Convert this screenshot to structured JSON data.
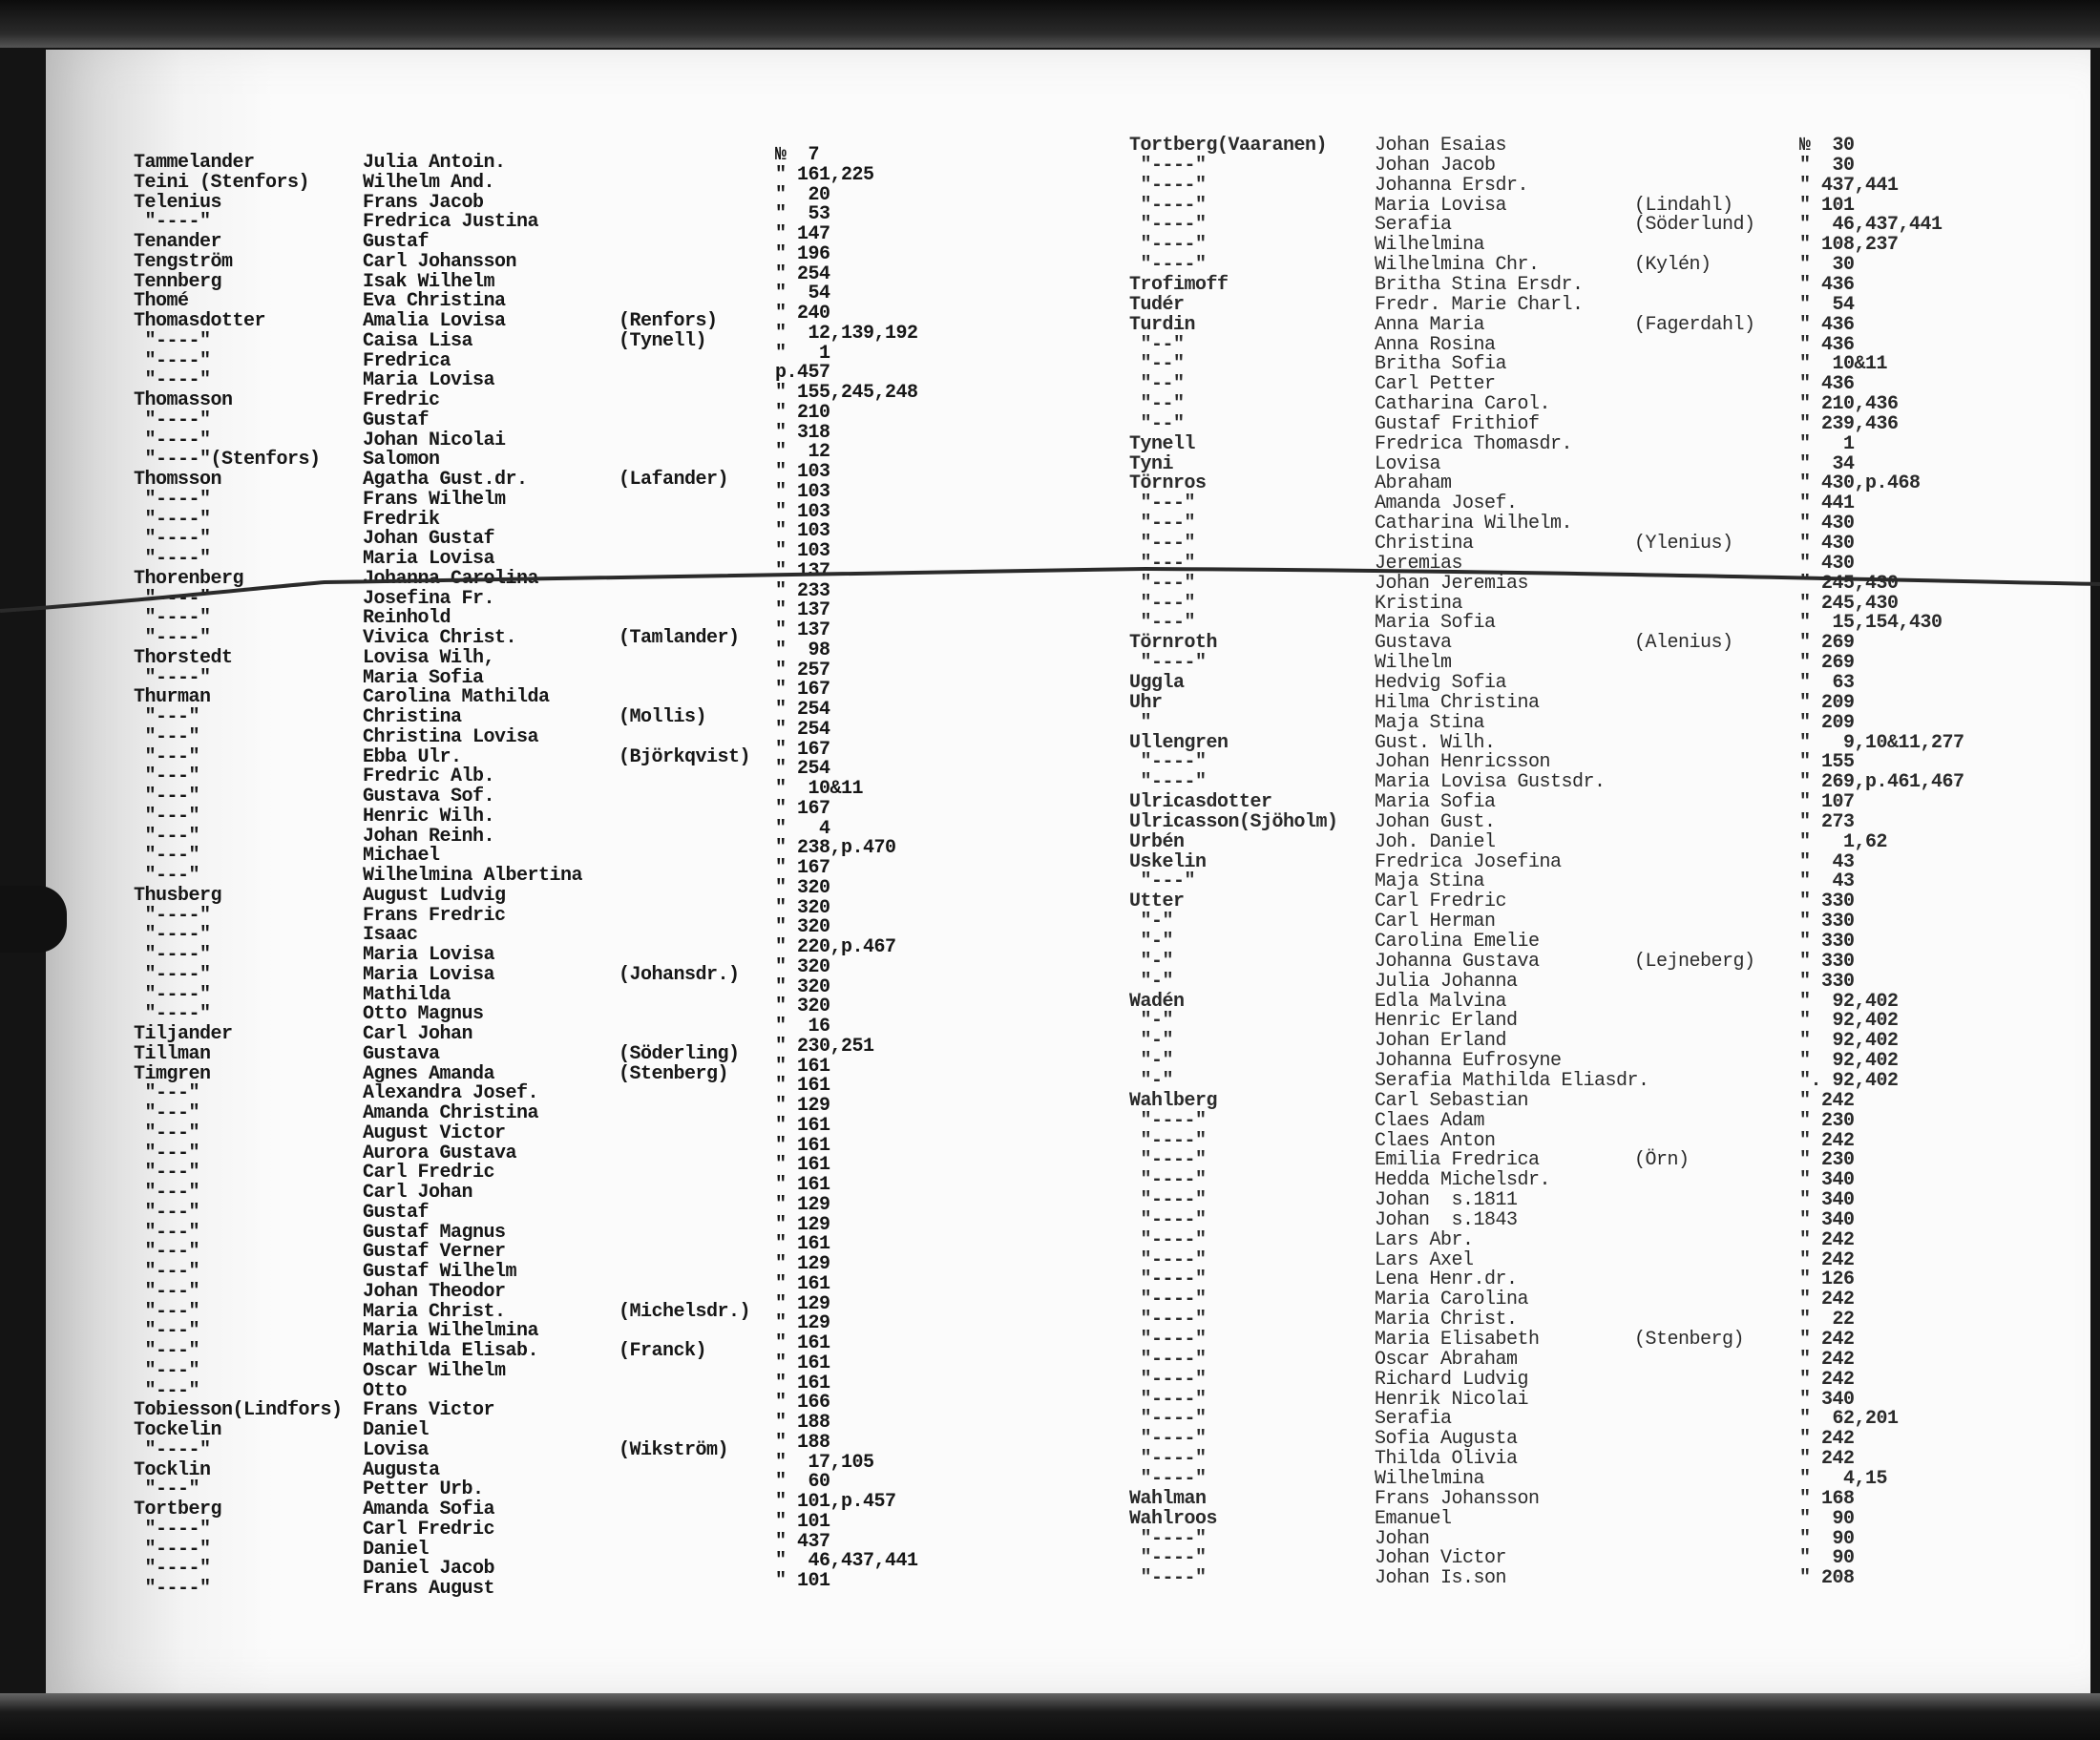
{
  "document": {
    "left_column": [
      {
        "surname": "Tammelander",
        "given": "Julia Antoin.",
        "note": "",
        "ref": "№  7"
      },
      {
        "surname": "Teini (Stenfors)",
        "given": "Wilhelm And.",
        "note": "",
        "ref": "\" 161,225"
      },
      {
        "surname": "Telenius",
        "given": "Frans Jacob",
        "note": "",
        "ref": "\"  20"
      },
      {
        "surname": " \"----\"",
        "given": "Fredrica Justina",
        "note": "",
        "ref": "\"  53"
      },
      {
        "surname": "Tenander",
        "given": "Gustaf",
        "note": "",
        "ref": "\" 147"
      },
      {
        "surname": "Tengström",
        "given": "Carl Johansson",
        "note": "",
        "ref": "\" 196"
      },
      {
        "surname": "Tennberg",
        "given": "Isak Wilhelm",
        "note": "",
        "ref": "\" 254"
      },
      {
        "surname": "Thomé",
        "given": "Eva Christina",
        "note": "",
        "ref": "\"  54"
      },
      {
        "surname": "Thomasdotter",
        "given": "Amalia Lovisa",
        "note": "(Renfors)",
        "ref": "\" 240"
      },
      {
        "surname": " \"----\"",
        "given": "Caisa Lisa",
        "note": "(Tynell)",
        "ref": "\"  12,139,192"
      },
      {
        "surname": " \"----\"",
        "given": "Fredrica",
        "note": "",
        "ref": "\"   1"
      },
      {
        "surname": " \"----\"",
        "given": "Maria Lovisa",
        "note": "",
        "ref": "p.457"
      },
      {
        "surname": "Thomasson",
        "given": "Fredric",
        "note": "",
        "ref": "\" 155,245,248"
      },
      {
        "surname": " \"----\"",
        "given": "Gustaf",
        "note": "",
        "ref": "\" 210"
      },
      {
        "surname": " \"----\"",
        "given": "Johan Nicolai",
        "note": "",
        "ref": "\" 318"
      },
      {
        "surname": " \"----\"(Stenfors)",
        "given": "Salomon",
        "note": "",
        "ref": "\"  12"
      },
      {
        "surname": "Thomsson",
        "given": "Agatha Gust.dr.",
        "note": "(Lafander)",
        "ref": "\" 103"
      },
      {
        "surname": " \"----\"",
        "given": "Frans Wilhelm",
        "note": "",
        "ref": "\" 103"
      },
      {
        "surname": " \"----\"",
        "given": "Fredrik",
        "note": "",
        "ref": "\" 103"
      },
      {
        "surname": " \"----\"",
        "given": "Johan Gustaf",
        "note": "",
        "ref": "\" 103"
      },
      {
        "surname": " \"----\"",
        "given": "Maria Lovisa",
        "note": "",
        "ref": "\" 103"
      },
      {
        "surname": "Thorenberg",
        "given": "Johanna Carolina",
        "note": "",
        "ref": "\" 137"
      },
      {
        "surname": " \"----\"",
        "given": "Josefina Fr.",
        "note": "",
        "ref": "\" 233"
      },
      {
        "surname": " \"----\"",
        "given": "Reinhold",
        "note": "",
        "ref": "\" 137"
      },
      {
        "surname": " \"----\"",
        "given": "Vivica Christ.",
        "note": "(Tamlander)",
        "ref": "\" 137"
      },
      {
        "surname": "Thorstedt",
        "given": "Lovisa Wilh,",
        "note": "",
        "ref": "\"  98"
      },
      {
        "surname": " \"----\"",
        "given": "Maria Sofia",
        "note": "",
        "ref": "\" 257"
      },
      {
        "surname": "Thurman",
        "given": "Carolina Mathilda",
        "note": "",
        "ref": "\" 167"
      },
      {
        "surname": " \"---\"",
        "given": "Christina",
        "note": "(Mollis)",
        "ref": "\" 254"
      },
      {
        "surname": " \"---\"",
        "given": "Christina Lovisa",
        "note": "",
        "ref": "\" 254"
      },
      {
        "surname": " \"---\"",
        "given": "Ebba Ulr.",
        "note": "(Björkqvist)",
        "ref": "\" 167"
      },
      {
        "surname": " \"---\"",
        "given": "Fredric Alb.",
        "note": "",
        "ref": "\" 254"
      },
      {
        "surname": " \"---\"",
        "given": "Gustava Sof.",
        "note": "",
        "ref": "\"  10&11"
      },
      {
        "surname": " \"---\"",
        "given": "Henric Wilh.",
        "note": "",
        "ref": "\" 167"
      },
      {
        "surname": " \"---\"",
        "given": "Johan Reinh.",
        "note": "",
        "ref": "\"   4"
      },
      {
        "surname": " \"---\"",
        "given": "Michael",
        "note": "",
        "ref": "\" 238,p.470"
      },
      {
        "surname": " \"---\"",
        "given": "Wilhelmina Albertina",
        "note": "",
        "ref": "\" 167"
      },
      {
        "surname": "Thusberg",
        "given": "August Ludvig",
        "note": "",
        "ref": "\" 320"
      },
      {
        "surname": " \"----\"",
        "given": "Frans Fredric",
        "note": "",
        "ref": "\" 320"
      },
      {
        "surname": " \"----\"",
        "given": "Isaac",
        "note": "",
        "ref": "\" 320"
      },
      {
        "surname": " \"----\"",
        "given": "Maria Lovisa",
        "note": "",
        "ref": "\" 220,p.467"
      },
      {
        "surname": " \"----\"",
        "given": "Maria Lovisa",
        "note": "(Johansdr.)",
        "ref": "\" 320"
      },
      {
        "surname": " \"----\"",
        "given": "Mathilda",
        "note": "",
        "ref": "\" 320"
      },
      {
        "surname": " \"----\"",
        "given": "Otto Magnus",
        "note": "",
        "ref": "\" 320"
      },
      {
        "surname": "Tiljander",
        "given": "Carl Johan",
        "note": "",
        "ref": "\"  16"
      },
      {
        "surname": "Tillman",
        "given": "Gustava",
        "note": "(Söderling)",
        "ref": "\" 230,251"
      },
      {
        "surname": "Timgren",
        "given": "Agnes Amanda",
        "note": "(Stenberg)",
        "ref": "\" 161"
      },
      {
        "surname": " \"---\"",
        "given": "Alexandra Josef.",
        "note": "",
        "ref": "\" 161"
      },
      {
        "surname": " \"---\"",
        "given": "Amanda Christina",
        "note": "",
        "ref": "\" 129"
      },
      {
        "surname": " \"---\"",
        "given": "August Victor",
        "note": "",
        "ref": "\" 161"
      },
      {
        "surname": " \"---\"",
        "given": "Aurora Gustava",
        "note": "",
        "ref": "\" 161"
      },
      {
        "surname": " \"---\"",
        "given": "Carl Fredric",
        "note": "",
        "ref": "\" 161"
      },
      {
        "surname": " \"---\"",
        "given": "Carl Johan",
        "note": "",
        "ref": "\" 161"
      },
      {
        "surname": " \"---\"",
        "given": "Gustaf",
        "note": "",
        "ref": "\" 129"
      },
      {
        "surname": " \"---\"",
        "given": "Gustaf Magnus",
        "note": "",
        "ref": "\" 129"
      },
      {
        "surname": " \"---\"",
        "given": "Gustaf Verner",
        "note": "",
        "ref": "\" 161"
      },
      {
        "surname": " \"---\"",
        "given": "Gustaf Wilhelm",
        "note": "",
        "ref": "\" 129"
      },
      {
        "surname": " \"---\"",
        "given": "Johan Theodor",
        "note": "",
        "ref": "\" 161"
      },
      {
        "surname": " \"---\"",
        "given": "Maria Christ.",
        "note": "(Michelsdr.)",
        "ref": "\" 129"
      },
      {
        "surname": " \"---\"",
        "given": "Maria Wilhelmina",
        "note": "",
        "ref": "\" 129"
      },
      {
        "surname": " \"---\"",
        "given": "Mathilda Elisab.",
        "note": "(Franck)",
        "ref": "\" 161"
      },
      {
        "surname": " \"---\"",
        "given": "Oscar Wilhelm",
        "note": "",
        "ref": "\" 161"
      },
      {
        "surname": " \"---\"",
        "given": "Otto",
        "note": "",
        "ref": "\" 161"
      },
      {
        "surname": "Tobiesson(Lindfors)",
        "given": "Frans Victor",
        "note": "",
        "ref": "\" 166"
      },
      {
        "surname": "Tockelin",
        "given": "Daniel",
        "note": "",
        "ref": "\" 188"
      },
      {
        "surname": " \"----\"",
        "given": "Lovisa",
        "note": "(Wikström)",
        "ref": "\" 188"
      },
      {
        "surname": "Tocklin",
        "given": "Augusta",
        "note": "",
        "ref": "\"  17,105"
      },
      {
        "surname": " \"---\"",
        "given": "Petter Urb.",
        "note": "",
        "ref": "\"  60"
      },
      {
        "surname": "Tortberg",
        "given": "Amanda Sofia",
        "note": "",
        "ref": "\" 101,p.457"
      },
      {
        "surname": " \"----\"",
        "given": "Carl Fredric",
        "note": "",
        "ref": "\" 101"
      },
      {
        "surname": " \"----\"",
        "given": "Daniel",
        "note": "",
        "ref": "\" 437"
      },
      {
        "surname": " \"----\"",
        "given": "Daniel Jacob",
        "note": "",
        "ref": "\"  46,437,441"
      },
      {
        "surname": " \"----\"",
        "given": "Frans August",
        "note": "",
        "ref": "\" 101"
      }
    ],
    "right_column": [
      {
        "surname": "Tortberg(Vaaranen)",
        "given": "Johan Esaias",
        "note": "",
        "ref": "№  30"
      },
      {
        "surname": " \"----\"",
        "given": "Johan Jacob",
        "note": "",
        "ref": "\"  30"
      },
      {
        "surname": " \"----\"",
        "given": "Johanna Ersdr.",
        "note": "",
        "ref": "\" 437,441"
      },
      {
        "surname": " \"----\"",
        "given": "Maria Lovisa",
        "note": "(Lindahl)",
        "ref": "\" 101"
      },
      {
        "surname": " \"----\"",
        "given": "Serafia",
        "note": "(Söderlund)",
        "ref": "\"  46,437,441"
      },
      {
        "surname": " \"----\"",
        "given": "Wilhelmina",
        "note": "",
        "ref": "\" 108,237"
      },
      {
        "surname": " \"----\"",
        "given": "Wilhelmina Chr.",
        "note": "(Kylén)",
        "ref": "\"  30"
      },
      {
        "surname": "Trofimoff",
        "given": "Britha Stina Ersdr.",
        "note": "",
        "ref": "\" 436"
      },
      {
        "surname": "Tudér",
        "given": "Fredr. Marie Charl.",
        "note": "",
        "ref": "\"  54"
      },
      {
        "surname": "Turdin",
        "given": "Anna Maria",
        "note": "(Fagerdahl)",
        "ref": "\" 436"
      },
      {
        "surname": " \"--\"",
        "given": "Anna Rosina",
        "note": "",
        "ref": "\" 436"
      },
      {
        "surname": " \"--\"",
        "given": "Britha Sofia",
        "note": "",
        "ref": "\"  10&11"
      },
      {
        "surname": " \"--\"",
        "given": "Carl Petter",
        "note": "",
        "ref": "\" 436"
      },
      {
        "surname": " \"--\"",
        "given": "Catharina Carol.",
        "note": "",
        "ref": "\" 210,436"
      },
      {
        "surname": " \"--\"",
        "given": "Gustaf Frithiof",
        "note": "",
        "ref": "\" 239,436"
      },
      {
        "surname": "Tynell",
        "given": "Fredrica Thomasdr.",
        "note": "",
        "ref": "\"   1"
      },
      {
        "surname": "Tyni",
        "given": "Lovisa",
        "note": "",
        "ref": "\"  34"
      },
      {
        "surname": "Törnros",
        "given": "Abraham",
        "note": "",
        "ref": "\" 430,p.468"
      },
      {
        "surname": " \"---\"",
        "given": "Amanda Josef.",
        "note": "",
        "ref": "\" 441"
      },
      {
        "surname": " \"---\"",
        "given": "Catharina Wilhelm.",
        "note": "",
        "ref": "\" 430"
      },
      {
        "surname": " \"---\"",
        "given": "Christina",
        "note": "(Ylenius)",
        "ref": "\" 430"
      },
      {
        "surname": " \"---\"",
        "given": "Jeremias",
        "note": "",
        "ref": "\" 430"
      },
      {
        "surname": " \"---\"",
        "given": "Johan Jeremias",
        "note": "",
        "ref": "\" 245,430"
      },
      {
        "surname": " \"---\"",
        "given": "Kristina",
        "note": "",
        "ref": "\" 245,430"
      },
      {
        "surname": " \"---\"",
        "given": "Maria Sofia",
        "note": "",
        "ref": "\"  15,154,430"
      },
      {
        "surname": "Törnroth",
        "given": "Gustava",
        "note": "(Alenius)",
        "ref": "\" 269"
      },
      {
        "surname": " \"----\"",
        "given": "Wilhelm",
        "note": "",
        "ref": "\" 269"
      },
      {
        "surname": "Uggla",
        "given": "Hedvig Sofia",
        "note": "",
        "ref": "\"  63"
      },
      {
        "surname": "Uhr",
        "given": "Hilma Christina",
        "note": "",
        "ref": "\" 209"
      },
      {
        "surname": " \"",
        "given": "Maja Stina",
        "note": "",
        "ref": "\" 209"
      },
      {
        "surname": "Ullengren",
        "given": "Gust. Wilh.",
        "note": "",
        "ref": "\"   9,10&11,277"
      },
      {
        "surname": " \"----\"",
        "given": "Johan Henricsson",
        "note": "",
        "ref": "\" 155"
      },
      {
        "surname": " \"----\"",
        "given": "Maria Lovisa Gustsdr.",
        "note": "",
        "ref": "\" 269,p.461,467"
      },
      {
        "surname": "Ulricasdotter",
        "given": "Maria Sofia",
        "note": "",
        "ref": "\" 107"
      },
      {
        "surname": "Ulricasson(Sjöholm)",
        "given": "Johan Gust.",
        "note": "",
        "ref": "\" 273"
      },
      {
        "surname": "Urbén",
        "given": "Joh. Daniel",
        "note": "",
        "ref": "\"   1,62"
      },
      {
        "surname": "Uskelin",
        "given": "Fredrica Josefina",
        "note": "",
        "ref": "\"  43"
      },
      {
        "surname": " \"---\"",
        "given": "Maja Stina",
        "note": "",
        "ref": "\"  43"
      },
      {
        "surname": "Utter",
        "given": "Carl Fredric",
        "note": "",
        "ref": "\" 330"
      },
      {
        "surname": " \"-\"",
        "given": "Carl Herman",
        "note": "",
        "ref": "\" 330"
      },
      {
        "surname": " \"-\"",
        "given": "Carolina Emelie",
        "note": "",
        "ref": "\" 330"
      },
      {
        "surname": " \"-\"",
        "given": "Johanna Gustava",
        "note": "(Lejneberg)",
        "ref": "\" 330"
      },
      {
        "surname": " \"-\"",
        "given": "Julia Johanna",
        "note": "",
        "ref": "\" 330"
      },
      {
        "surname": "Wadén",
        "given": "Edla Malvina",
        "note": "",
        "ref": "\"  92,402"
      },
      {
        "surname": " \"-\"",
        "given": "Henric Erland",
        "note": "",
        "ref": "\"  92,402"
      },
      {
        "surname": " \"-\"",
        "given": "Johan Erland",
        "note": "",
        "ref": "\"  92,402"
      },
      {
        "surname": " \"-\"",
        "given": "Johanna Eufrosyne",
        "note": "",
        "ref": "\"  92,402"
      },
      {
        "surname": " \"-\"",
        "given": "Serafia Mathilda Eliasdr.",
        "note": "",
        "ref": "\". 92,402"
      },
      {
        "surname": "Wahlberg",
        "given": "Carl Sebastian",
        "note": "",
        "ref": "\" 242"
      },
      {
        "surname": " \"----\"",
        "given": "Claes Adam",
        "note": "",
        "ref": "\" 230"
      },
      {
        "surname": " \"----\"",
        "given": "Claes Anton",
        "note": "",
        "ref": "\" 242"
      },
      {
        "surname": " \"----\"",
        "given": "Emilia Fredrica",
        "note": "(Örn)",
        "ref": "\" 230"
      },
      {
        "surname": " \"----\"",
        "given": "Hedda Michelsdr.",
        "note": "",
        "ref": "\" 340"
      },
      {
        "surname": " \"----\"",
        "given": "Johan  s.1811",
        "note": "",
        "ref": "\" 340"
      },
      {
        "surname": " \"----\"",
        "given": "Johan  s.1843",
        "note": "",
        "ref": "\" 340"
      },
      {
        "surname": " \"----\"",
        "given": "Lars Abr.",
        "note": "",
        "ref": "\" 242"
      },
      {
        "surname": " \"----\"",
        "given": "Lars Axel",
        "note": "",
        "ref": "\" 242"
      },
      {
        "surname": " \"----\"",
        "given": "Lena Henr.dr.",
        "note": "",
        "ref": "\" 126"
      },
      {
        "surname": " \"----\"",
        "given": "Maria Carolina",
        "note": "",
        "ref": "\" 242"
      },
      {
        "surname": " \"----\"",
        "given": "Maria Christ.",
        "note": "",
        "ref": "\"  22"
      },
      {
        "surname": " \"----\"",
        "given": "Maria Elisabeth",
        "note": "(Stenberg)",
        "ref": "\" 242"
      },
      {
        "surname": " \"----\"",
        "given": "Oscar Abraham",
        "note": "",
        "ref": "\" 242"
      },
      {
        "surname": " \"----\"",
        "given": "Richard Ludvig",
        "note": "",
        "ref": "\" 242"
      },
      {
        "surname": " \"----\"",
        "given": "Henrik Nicolai",
        "note": "",
        "ref": "\" 340"
      },
      {
        "surname": " \"----\"",
        "given": "Serafia",
        "note": "",
        "ref": "\"  62,201"
      },
      {
        "surname": " \"----\"",
        "given": "Sofia Augusta",
        "note": "",
        "ref": "\" 242"
      },
      {
        "surname": " \"----\"",
        "given": "Thilda Olivia",
        "note": "",
        "ref": "\" 242"
      },
      {
        "surname": " \"----\"",
        "given": "Wilhelmina",
        "note": "",
        "ref": "\"   4,15"
      },
      {
        "surname": "Wahlman",
        "given": "Frans Johansson",
        "note": "",
        "ref": "\" 168"
      },
      {
        "surname": "Wahlroos",
        "given": "Emanuel",
        "note": "",
        "ref": "\"  90"
      },
      {
        "surname": " \"----\"",
        "given": "Johan",
        "note": "",
        "ref": "\"  90"
      },
      {
        "surname": " \"----\"",
        "given": "Johan Victor",
        "note": "",
        "ref": "\"  90"
      },
      {
        "surname": " \"----\"",
        "given": "Johan Is.son",
        "note": "",
        "ref": "\" 208"
      }
    ]
  },
  "colors": {
    "paper": "#fbfbfb",
    "ink": "#161616",
    "scan_border": "#141414"
  }
}
